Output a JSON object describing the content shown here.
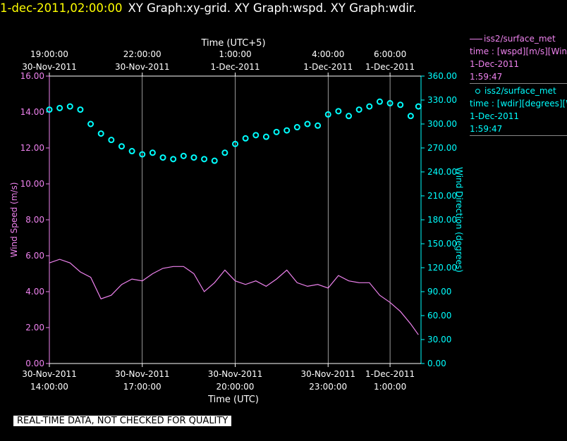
{
  "header": {
    "date": "1-dec-2011,02:00:00",
    "graphs": "XY Graph:xy-grid.  XY Graph:wspd.  XY Graph:wdir."
  },
  "notice": "REAL-TIME DATA, NOT CHECKED FOR QUALITY",
  "legend": [
    {
      "title": "iss2/surface_met",
      "var": "time : [wspd][m/s][Wind",
      "date": "1-Dec-2011",
      "time": "1:59:47"
    },
    {
      "title": "iss2/surface_met",
      "var": "time : [wdir][degrees][W",
      "date": "1-Dec-2011",
      "time": "1:59:47"
    }
  ],
  "colors": {
    "speed": "#ee82ee",
    "direction": "#00ffff",
    "grid": "#ffffff",
    "background": "#000000",
    "date": "#ffff00"
  },
  "chart_data": {
    "type": "line",
    "title": "",
    "xlabel": "Time (UTC)",
    "x2label": "Time (UTC+5)",
    "ylabel": "Wind Speed (m/s)",
    "y2label": "Wind Direction (degrees)",
    "x_range": [
      "30-Nov-2011 14:00",
      "1-Dec-2011 02:00"
    ],
    "ylim": [
      0,
      16
    ],
    "y2lim": [
      0,
      360
    ],
    "grid": "vertical",
    "legend_position": "right",
    "y_ticks": [
      "0.00",
      "2.00",
      "4.00",
      "6.00",
      "8.00",
      "10.00",
      "12.00",
      "14.00",
      "16.00"
    ],
    "y2_ticks": [
      "0.00",
      "30.00",
      "60.00",
      "90.00",
      "120.00",
      "150.00",
      "180.00",
      "210.00",
      "240.00",
      "270.00",
      "300.00",
      "330.00",
      "360.00"
    ],
    "x_ticks": [
      {
        "t": "30-Nov-2011 14:00",
        "label1": "30-Nov-2011",
        "label2": "14:00:00"
      },
      {
        "t": "30-Nov-2011 17:00",
        "label1": "30-Nov-2011",
        "label2": "17:00:00"
      },
      {
        "t": "30-Nov-2011 20:00",
        "label1": "30-Nov-2011",
        "label2": "20:00:00"
      },
      {
        "t": "30-Nov-2011 23:00",
        "label1": "30-Nov-2011",
        "label2": "23:00:00"
      },
      {
        "t": "1-Dec-2011 01:00",
        "label1": "1-Dec-2011",
        "label2": "1:00:00"
      }
    ],
    "x2_ticks": [
      {
        "t": "30-Nov-2011 14:00",
        "label1": "19:00:00",
        "label2": "30-Nov-2011"
      },
      {
        "t": "30-Nov-2011 17:00",
        "label1": "22:00:00",
        "label2": "30-Nov-2011"
      },
      {
        "t": "30-Nov-2011 20:00",
        "label1": "1:00:00",
        "label2": "1-Dec-2011"
      },
      {
        "t": "30-Nov-2011 23:00",
        "label1": "4:00:00",
        "label2": "1-Dec-2011"
      },
      {
        "t": "1-Dec-2011 01:00",
        "label1": "6:00:00",
        "label2": "1-Dec-2011"
      }
    ],
    "series": [
      {
        "name": "time : [wspd][m/s][Wind",
        "axis": "left",
        "style": "line",
        "points": [
          [
            "30-Nov-2011 14:00",
            5.6
          ],
          [
            "30-Nov-2011 14:20",
            5.8
          ],
          [
            "30-Nov-2011 14:40",
            5.6
          ],
          [
            "30-Nov-2011 15:00",
            5.1
          ],
          [
            "30-Nov-2011 15:20",
            4.8
          ],
          [
            "30-Nov-2011 15:40",
            3.6
          ],
          [
            "30-Nov-2011 16:00",
            3.8
          ],
          [
            "30-Nov-2011 16:20",
            4.4
          ],
          [
            "30-Nov-2011 16:40",
            4.7
          ],
          [
            "30-Nov-2011 17:00",
            4.6
          ],
          [
            "30-Nov-2011 17:20",
            5.0
          ],
          [
            "30-Nov-2011 17:40",
            5.3
          ],
          [
            "30-Nov-2011 18:00",
            5.4
          ],
          [
            "30-Nov-2011 18:20",
            5.4
          ],
          [
            "30-Nov-2011 18:40",
            5.0
          ],
          [
            "30-Nov-2011 19:00",
            4.0
          ],
          [
            "30-Nov-2011 19:20",
            4.5
          ],
          [
            "30-Nov-2011 19:40",
            5.2
          ],
          [
            "30-Nov-2011 20:00",
            4.6
          ],
          [
            "30-Nov-2011 20:20",
            4.4
          ],
          [
            "30-Nov-2011 20:40",
            4.6
          ],
          [
            "30-Nov-2011 21:00",
            4.3
          ],
          [
            "30-Nov-2011 21:20",
            4.7
          ],
          [
            "30-Nov-2011 21:40",
            5.2
          ],
          [
            "30-Nov-2011 22:00",
            4.5
          ],
          [
            "30-Nov-2011 22:20",
            4.3
          ],
          [
            "30-Nov-2011 22:40",
            4.4
          ],
          [
            "30-Nov-2011 23:00",
            4.2
          ],
          [
            "30-Nov-2011 23:20",
            4.9
          ],
          [
            "30-Nov-2011 23:40",
            4.6
          ],
          [
            "1-Dec-2011 00:00",
            4.5
          ],
          [
            "1-Dec-2011 00:20",
            4.5
          ],
          [
            "1-Dec-2011 00:40",
            3.8
          ],
          [
            "1-Dec-2011 01:00",
            3.4
          ],
          [
            "1-Dec-2011 01:20",
            2.9
          ],
          [
            "1-Dec-2011 01:40",
            2.2
          ],
          [
            "1-Dec-2011 01:55",
            1.6
          ]
        ]
      },
      {
        "name": "time : [wdir][degrees][W",
        "axis": "right",
        "style": "markers",
        "points": [
          [
            "30-Nov-2011 14:00",
            318
          ],
          [
            "30-Nov-2011 14:20",
            320
          ],
          [
            "30-Nov-2011 14:40",
            322
          ],
          [
            "30-Nov-2011 15:00",
            318
          ],
          [
            "30-Nov-2011 15:20",
            300
          ],
          [
            "30-Nov-2011 15:40",
            288
          ],
          [
            "30-Nov-2011 16:00",
            280
          ],
          [
            "30-Nov-2011 16:20",
            272
          ],
          [
            "30-Nov-2011 16:40",
            266
          ],
          [
            "30-Nov-2011 17:00",
            262
          ],
          [
            "30-Nov-2011 17:20",
            264
          ],
          [
            "30-Nov-2011 17:40",
            258
          ],
          [
            "30-Nov-2011 18:00",
            256
          ],
          [
            "30-Nov-2011 18:20",
            260
          ],
          [
            "30-Nov-2011 18:40",
            258
          ],
          [
            "30-Nov-2011 19:00",
            256
          ],
          [
            "30-Nov-2011 19:20",
            254
          ],
          [
            "30-Nov-2011 19:40",
            264
          ],
          [
            "30-Nov-2011 20:00",
            275
          ],
          [
            "30-Nov-2011 20:20",
            282
          ],
          [
            "30-Nov-2011 20:40",
            286
          ],
          [
            "30-Nov-2011 21:00",
            284
          ],
          [
            "30-Nov-2011 21:20",
            290
          ],
          [
            "30-Nov-2011 21:40",
            292
          ],
          [
            "30-Nov-2011 22:00",
            296
          ],
          [
            "30-Nov-2011 22:20",
            300
          ],
          [
            "30-Nov-2011 22:40",
            298
          ],
          [
            "30-Nov-2011 23:00",
            312
          ],
          [
            "30-Nov-2011 23:20",
            316
          ],
          [
            "30-Nov-2011 23:40",
            310
          ],
          [
            "1-Dec-2011 00:00",
            318
          ],
          [
            "1-Dec-2011 00:20",
            322
          ],
          [
            "1-Dec-2011 00:40",
            328
          ],
          [
            "1-Dec-2011 01:00",
            326
          ],
          [
            "1-Dec-2011 01:20",
            324
          ],
          [
            "1-Dec-2011 01:40",
            310
          ],
          [
            "1-Dec-2011 01:55",
            322
          ]
        ]
      }
    ]
  }
}
